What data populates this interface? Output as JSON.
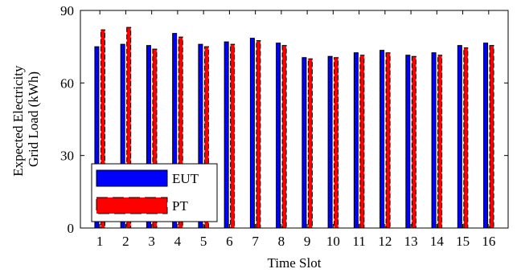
{
  "chart_data": {
    "type": "bar",
    "xlabel": "Time Slot",
    "ylabel_lines": [
      "Expected Electricity",
      "Grid Load  (kWh)"
    ],
    "ylim": [
      0,
      90
    ],
    "yticks": [
      0,
      30,
      60,
      90
    ],
    "grid": false,
    "legend_position": "bottom-left",
    "categories": [
      "1",
      "2",
      "3",
      "4",
      "5",
      "6",
      "7",
      "8",
      "9",
      "10",
      "11",
      "12",
      "13",
      "14",
      "15",
      "16"
    ],
    "series": [
      {
        "name": "EUT",
        "color": "#0000ff",
        "edge_color": "#000000",
        "edge_style": "solid",
        "values": [
          75,
          76,
          75.5,
          80.5,
          76,
          77,
          78.5,
          76.5,
          70.5,
          71,
          72.5,
          73.5,
          71.5,
          72.5,
          75.5,
          76.5
        ]
      },
      {
        "name": "PT",
        "color": "#ff0000",
        "edge_color": "#000000",
        "edge_style": "dashed",
        "values": [
          82,
          83,
          74,
          79,
          75,
          76,
          77.5,
          75.5,
          70,
          70.5,
          71.5,
          72.5,
          71,
          71.5,
          74.5,
          75.5
        ]
      }
    ]
  }
}
